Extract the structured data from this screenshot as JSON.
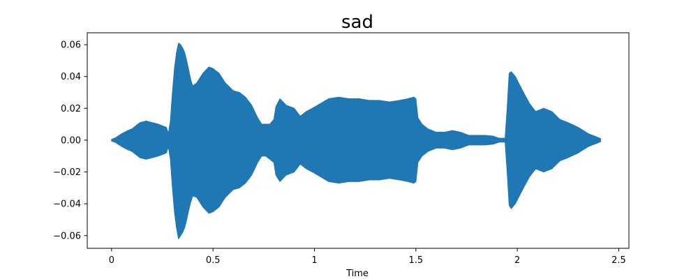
{
  "chart_data": {
    "type": "area",
    "title": "sad",
    "xlabel": "Time",
    "ylabel": "",
    "xlim": [
      -0.12,
      2.55
    ],
    "ylim": [
      -0.068,
      0.0675
    ],
    "xticks": [
      0,
      0.5,
      1,
      1.5,
      2,
      2.5
    ],
    "xtick_labels": [
      "0",
      "0.5",
      "1",
      "1.5",
      "2",
      "2.5"
    ],
    "yticks": [
      -0.06,
      -0.04,
      -0.02,
      0.0,
      0.02,
      0.04,
      0.06
    ],
    "ytick_labels": [
      "−0.06",
      "−0.04",
      "−0.02",
      "0.00",
      "0.02",
      "0.04",
      "0.06"
    ],
    "grid": false,
    "legend": "none",
    "series": [
      {
        "color": "#1f77b4",
        "time": [
          0,
          0.02,
          0.05,
          0.08,
          0.1,
          0.14,
          0.17,
          0.2,
          0.23,
          0.25,
          0.27,
          0.28,
          0.29,
          0.3,
          0.31,
          0.32,
          0.33,
          0.34,
          0.35,
          0.36,
          0.37,
          0.38,
          0.39,
          0.4,
          0.42,
          0.45,
          0.48,
          0.5,
          0.53,
          0.56,
          0.6,
          0.63,
          0.66,
          0.69,
          0.72,
          0.74,
          0.76,
          0.78,
          0.8,
          0.81,
          0.83,
          0.86,
          0.9,
          0.93,
          0.96,
          0.99,
          1.03,
          1.07,
          1.12,
          1.17,
          1.22,
          1.27,
          1.32,
          1.37,
          1.42,
          1.46,
          1.49,
          1.5,
          1.51,
          1.53,
          1.56,
          1.6,
          1.64,
          1.68,
          1.72,
          1.76,
          1.8,
          1.84,
          1.88,
          1.91,
          1.94,
          1.95,
          1.96,
          1.97,
          1.99,
          2.01,
          2.03,
          2.06,
          2.09,
          2.13,
          2.17,
          2.21,
          2.25,
          2.3,
          2.35,
          2.39,
          2.41
        ],
        "upper": [
          0.0005,
          0.0015,
          0.004,
          0.006,
          0.007,
          0.011,
          0.012,
          0.011,
          0.01,
          0.009,
          0.008,
          0.004,
          0.012,
          0.03,
          0.045,
          0.055,
          0.061,
          0.06,
          0.058,
          0.055,
          0.05,
          0.044,
          0.038,
          0.034,
          0.036,
          0.042,
          0.046,
          0.045,
          0.042,
          0.036,
          0.031,
          0.03,
          0.027,
          0.022,
          0.014,
          0.01,
          0.01,
          0.01,
          0.013,
          0.021,
          0.026,
          0.022,
          0.02,
          0.015,
          0.018,
          0.02,
          0.023,
          0.026,
          0.027,
          0.026,
          0.026,
          0.025,
          0.025,
          0.024,
          0.025,
          0.026,
          0.027,
          0.026,
          0.014,
          0.01,
          0.007,
          0.005,
          0.005,
          0.006,
          0.005,
          0.003,
          0.003,
          0.003,
          0.0025,
          0.0012,
          0.0012,
          0.02,
          0.042,
          0.043,
          0.04,
          0.035,
          0.03,
          0.023,
          0.018,
          0.02,
          0.018,
          0.013,
          0.011,
          0.008,
          0.004,
          0.002,
          0.001
        ],
        "lower": [
          -0.0005,
          -0.0015,
          -0.004,
          -0.006,
          -0.007,
          -0.011,
          -0.012,
          -0.011,
          -0.01,
          -0.009,
          -0.008,
          -0.004,
          -0.012,
          -0.03,
          -0.045,
          -0.055,
          -0.062,
          -0.06,
          -0.058,
          -0.055,
          -0.05,
          -0.044,
          -0.039,
          -0.035,
          -0.036,
          -0.042,
          -0.046,
          -0.045,
          -0.042,
          -0.036,
          -0.031,
          -0.03,
          -0.027,
          -0.022,
          -0.014,
          -0.01,
          -0.01,
          -0.012,
          -0.014,
          -0.022,
          -0.026,
          -0.022,
          -0.02,
          -0.015,
          -0.018,
          -0.02,
          -0.023,
          -0.026,
          -0.027,
          -0.026,
          -0.026,
          -0.025,
          -0.025,
          -0.024,
          -0.025,
          -0.026,
          -0.027,
          -0.026,
          -0.014,
          -0.01,
          -0.007,
          -0.005,
          -0.005,
          -0.006,
          -0.005,
          -0.003,
          -0.003,
          -0.003,
          -0.0025,
          -0.0012,
          -0.0012,
          -0.02,
          -0.041,
          -0.043,
          -0.04,
          -0.035,
          -0.03,
          -0.023,
          -0.018,
          -0.02,
          -0.018,
          -0.013,
          -0.011,
          -0.008,
          -0.004,
          -0.002,
          -0.001
        ]
      }
    ]
  }
}
